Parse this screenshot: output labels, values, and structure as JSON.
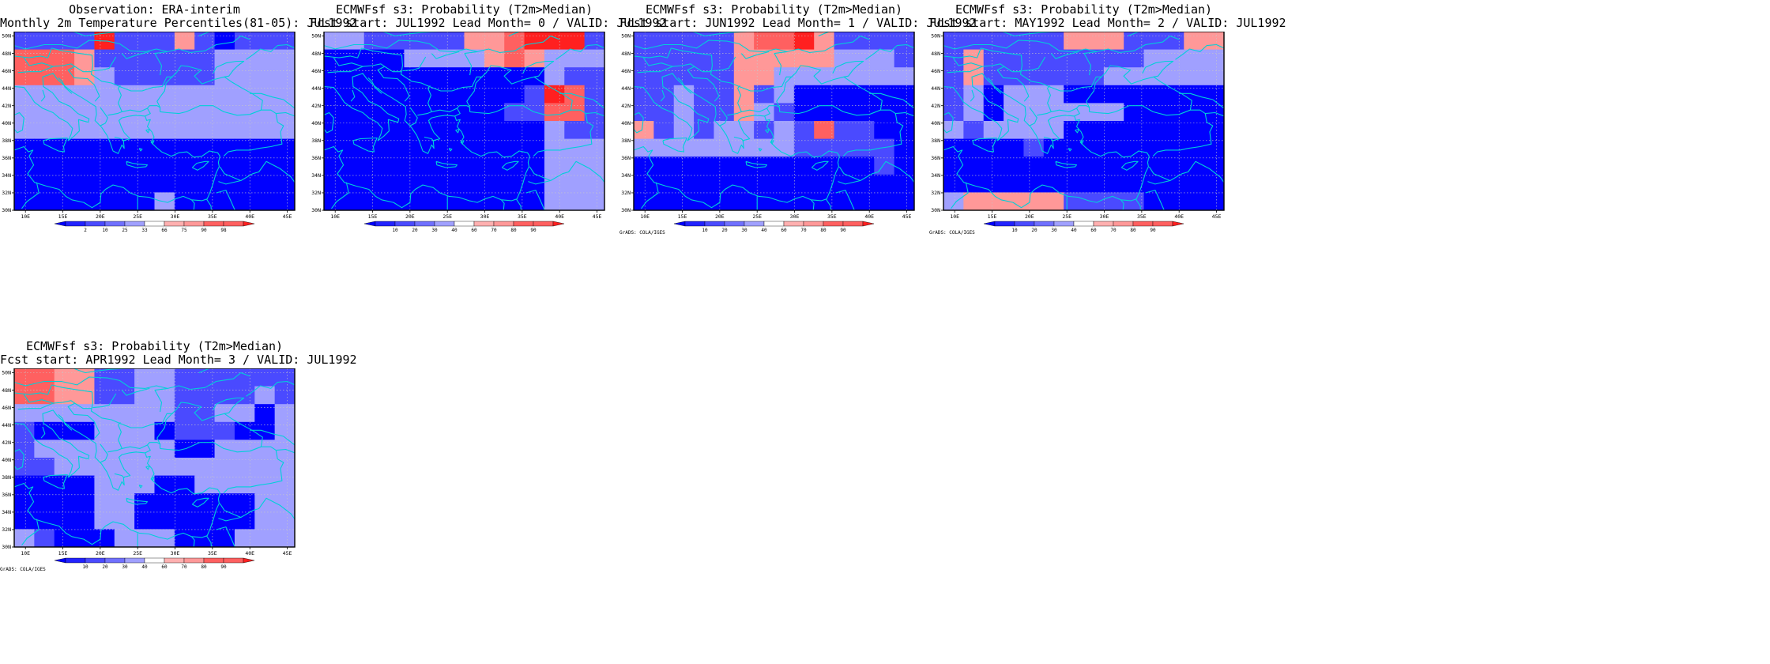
{
  "panels": [
    {
      "id": "obs",
      "title1": "Observation: ERA-interim",
      "title2": "Monthly 2m Temperature Percentiles(81-05): JUL1992",
      "credit": "",
      "colorbar_labels": [
        "2",
        "10",
        "25",
        "33",
        "66",
        "75",
        "90",
        "98"
      ],
      "grid": [
        [
          2,
          2,
          2,
          2,
          6,
          2,
          2,
          2,
          4,
          2,
          1,
          2,
          2,
          2
        ],
        [
          5,
          5,
          5,
          4,
          2,
          2,
          2,
          2,
          2,
          2,
          3,
          3,
          3,
          3
        ],
        [
          5,
          5,
          5,
          4,
          3,
          2,
          2,
          2,
          2,
          2,
          3,
          3,
          3,
          3
        ],
        [
          3,
          3,
          3,
          3,
          3,
          3,
          3,
          3,
          3,
          3,
          3,
          3,
          3,
          3
        ],
        [
          3,
          3,
          3,
          3,
          3,
          3,
          3,
          3,
          3,
          3,
          3,
          3,
          3,
          3
        ],
        [
          3,
          3,
          3,
          3,
          3,
          3,
          3,
          3,
          3,
          3,
          3,
          3,
          3,
          3
        ],
        [
          1,
          1,
          1,
          1,
          1,
          1,
          1,
          1,
          1,
          1,
          1,
          1,
          1,
          1
        ],
        [
          1,
          1,
          1,
          1,
          1,
          1,
          1,
          1,
          1,
          1,
          1,
          1,
          1,
          1
        ],
        [
          1,
          1,
          1,
          1,
          1,
          1,
          1,
          1,
          1,
          1,
          1,
          1,
          1,
          1
        ],
        [
          1,
          1,
          1,
          1,
          1,
          1,
          1,
          3,
          1,
          1,
          1,
          1,
          1,
          1
        ]
      ]
    },
    {
      "id": "lead0",
      "title1": "ECMWFsf s3: Probability (T2m>Median)",
      "title2": "Fcst start: JUL1992  Lead Month= 0 / VALID: JUL1992",
      "credit": "",
      "colorbar_labels": [
        "10",
        "20",
        "30",
        "40",
        "60",
        "70",
        "80",
        "90"
      ],
      "grid": [
        [
          3,
          3,
          2,
          2,
          2,
          2,
          2,
          4,
          4,
          5,
          6,
          6,
          6,
          2
        ],
        [
          1,
          1,
          1,
          1,
          3,
          3,
          3,
          3,
          4,
          5,
          4,
          3,
          3,
          3
        ],
        [
          1,
          1,
          1,
          1,
          1,
          1,
          1,
          1,
          1,
          1,
          1,
          3,
          2,
          2
        ],
        [
          1,
          1,
          1,
          1,
          1,
          1,
          1,
          1,
          1,
          1,
          2,
          6,
          5,
          2
        ],
        [
          1,
          1,
          1,
          1,
          1,
          1,
          1,
          1,
          1,
          2,
          2,
          5,
          5,
          2
        ],
        [
          1,
          1,
          1,
          1,
          1,
          1,
          1,
          1,
          1,
          1,
          1,
          3,
          2,
          2
        ],
        [
          1,
          1,
          1,
          1,
          1,
          1,
          1,
          1,
          1,
          1,
          1,
          3,
          3,
          3
        ],
        [
          1,
          1,
          1,
          1,
          1,
          1,
          1,
          1,
          1,
          1,
          1,
          3,
          3,
          3
        ],
        [
          1,
          1,
          1,
          1,
          1,
          1,
          1,
          1,
          1,
          1,
          1,
          3,
          3,
          3
        ],
        [
          1,
          1,
          1,
          1,
          1,
          1,
          1,
          1,
          1,
          1,
          1,
          3,
          3,
          3
        ]
      ]
    },
    {
      "id": "lead1",
      "title1": "ECMWFsf s3: Probability (T2m>Median)",
      "title2": "Fcst start: JUN1992  Lead Month= 1 / VALID: JUL1992",
      "credit": "GrADS: COLA/IGES",
      "colorbar_labels": [
        "10",
        "20",
        "30",
        "40",
        "60",
        "70",
        "80",
        "90"
      ],
      "grid": [
        [
          2,
          2,
          2,
          2,
          2,
          4,
          5,
          5,
          6,
          4,
          2,
          2,
          2,
          2
        ],
        [
          2,
          2,
          2,
          2,
          2,
          4,
          4,
          4,
          4,
          4,
          3,
          3,
          3,
          2
        ],
        [
          2,
          2,
          2,
          2,
          2,
          4,
          4,
          3,
          3,
          3,
          3,
          3,
          3,
          3
        ],
        [
          2,
          2,
          3,
          2,
          2,
          4,
          2,
          3,
          1,
          1,
          1,
          1,
          1,
          1
        ],
        [
          2,
          2,
          3,
          2,
          2,
          4,
          3,
          2,
          1,
          1,
          1,
          1,
          1,
          1
        ],
        [
          4,
          2,
          3,
          2,
          3,
          3,
          2,
          3,
          2,
          5,
          2,
          2,
          1,
          1
        ],
        [
          3,
          3,
          3,
          3,
          3,
          3,
          3,
          3,
          2,
          2,
          2,
          2,
          2,
          1
        ],
        [
          1,
          1,
          1,
          1,
          1,
          1,
          1,
          1,
          1,
          1,
          1,
          1,
          2,
          1
        ],
        [
          1,
          1,
          1,
          1,
          1,
          1,
          1,
          1,
          1,
          1,
          1,
          1,
          1,
          1
        ],
        [
          1,
          1,
          1,
          1,
          1,
          1,
          1,
          1,
          1,
          1,
          1,
          1,
          1,
          1
        ]
      ]
    },
    {
      "id": "lead2",
      "title1": "ECMWFsf s3: Probability (T2m>Median)",
      "title2": "Fcst start: MAY1992  Lead Month= 2 / VALID: JUL1992",
      "credit": "GrADS: COLA/IGES",
      "colorbar_labels": [
        "10",
        "20",
        "30",
        "40",
        "60",
        "70",
        "80",
        "90"
      ],
      "grid": [
        [
          2,
          2,
          2,
          2,
          2,
          2,
          4,
          4,
          4,
          2,
          2,
          2,
          4,
          4
        ],
        [
          2,
          4,
          2,
          2,
          2,
          2,
          2,
          2,
          2,
          2,
          3,
          3,
          3,
          3
        ],
        [
          2,
          4,
          2,
          2,
          2,
          2,
          2,
          2,
          3,
          3,
          3,
          3,
          3,
          3
        ],
        [
          2,
          3,
          1,
          3,
          3,
          3,
          1,
          1,
          1,
          1,
          1,
          1,
          1,
          1
        ],
        [
          2,
          3,
          1,
          3,
          3,
          3,
          3,
          3,
          3,
          1,
          1,
          1,
          1,
          1
        ],
        [
          3,
          2,
          3,
          3,
          3,
          3,
          1,
          1,
          1,
          1,
          1,
          1,
          1,
          1
        ],
        [
          1,
          1,
          1,
          1,
          2,
          1,
          1,
          1,
          1,
          1,
          1,
          1,
          1,
          1
        ],
        [
          1,
          1,
          1,
          1,
          1,
          1,
          1,
          1,
          1,
          1,
          1,
          1,
          1,
          1
        ],
        [
          1,
          1,
          1,
          1,
          1,
          1,
          1,
          1,
          1,
          1,
          1,
          1,
          1,
          1
        ],
        [
          3,
          4,
          4,
          4,
          4,
          4,
          2,
          2,
          2,
          2,
          1,
          1,
          1,
          1
        ]
      ]
    },
    {
      "id": "lead3",
      "title1": "ECMWFsf s3: Probability (T2m>Median)",
      "title2": "Fcst start: APR1992  Lead Month= 3 / VALID: JUL1992",
      "credit": "GrADS: COLA/IGES",
      "colorbar_labels": [
        "10",
        "20",
        "30",
        "40",
        "60",
        "70",
        "80",
        "90"
      ],
      "grid": [
        [
          5,
          5,
          4,
          4,
          2,
          2,
          3,
          3,
          2,
          2,
          2,
          2,
          2,
          2
        ],
        [
          5,
          5,
          4,
          4,
          2,
          2,
          3,
          3,
          2,
          2,
          2,
          2,
          3,
          2
        ],
        [
          3,
          3,
          3,
          3,
          3,
          3,
          3,
          3,
          2,
          2,
          3,
          3,
          1,
          3
        ],
        [
          2,
          1,
          1,
          1,
          3,
          3,
          3,
          1,
          2,
          2,
          2,
          1,
          1,
          3
        ],
        [
          2,
          3,
          3,
          3,
          3,
          3,
          3,
          3,
          1,
          1,
          3,
          3,
          3,
          3
        ],
        [
          2,
          2,
          3,
          3,
          3,
          3,
          3,
          3,
          3,
          3,
          3,
          3,
          3,
          3
        ],
        [
          1,
          1,
          1,
          1,
          3,
          3,
          3,
          1,
          1,
          3,
          3,
          3,
          3,
          3
        ],
        [
          1,
          1,
          1,
          1,
          3,
          3,
          1,
          1,
          1,
          1,
          1,
          1,
          3,
          3
        ],
        [
          1,
          1,
          1,
          1,
          3,
          3,
          1,
          1,
          1,
          1,
          1,
          1,
          3,
          3
        ],
        [
          3,
          2,
          1,
          1,
          1,
          3,
          3,
          3,
          1,
          1,
          1,
          3,
          3,
          3
        ]
      ]
    }
  ],
  "map": {
    "lat_labels": [
      "50N",
      "48N",
      "46N",
      "44N",
      "42N",
      "40N",
      "38N",
      "36N",
      "34N",
      "32N",
      "30N"
    ],
    "lon_labels": [
      "10E",
      "15E",
      "20E",
      "25E",
      "30E",
      "35E",
      "40E",
      "45E"
    ],
    "colors": {
      "palette": [
        "#ffffff",
        "#0000ff",
        "#4a4aff",
        "#a0a0ff",
        "#ff9898",
        "#ff6060",
        "#ff2020"
      ],
      "coast": "#00d0d8",
      "frame": "#000000",
      "gridline": "#c8c8c8"
    }
  }
}
